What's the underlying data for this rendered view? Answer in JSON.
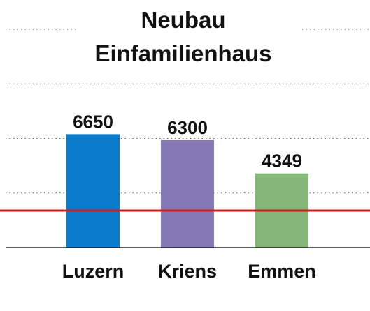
{
  "chart_data": {
    "type": "bar",
    "title": [
      "Neubau",
      "Einfamilienhaus"
    ],
    "categories": [
      "Luzern",
      "Kriens",
      "Emmen"
    ],
    "values": [
      6650,
      6300,
      4349
    ],
    "value_labels": [
      "6650",
      "6300",
      "4349"
    ],
    "colors": [
      "#0a7ccb",
      "#8579b5",
      "#85b778"
    ],
    "reference_line_color": "#d81a1a",
    "ylim": [
      0,
      12800
    ],
    "grid": "dotted",
    "legend": "none"
  }
}
